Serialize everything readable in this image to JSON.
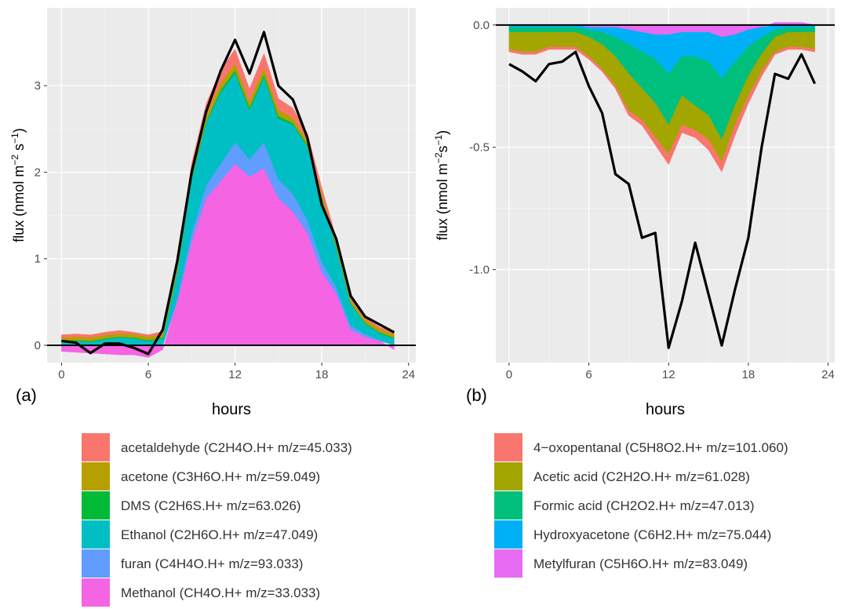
{
  "chart_data": [
    {
      "type": "area",
      "panel_label": "(a)",
      "xlabel": "hours",
      "ylabel": "flux (nmol m",
      "ylabel_exp1": "−2",
      "ylabel_mid": " s",
      "ylabel_exp2": "−1",
      "ylabel_end": ")",
      "xlim": [
        -1,
        24.5
      ],
      "ylim": [
        -0.2,
        3.9
      ],
      "xticks": [
        0,
        6,
        12,
        18,
        24
      ],
      "yticks": [
        0,
        1,
        2,
        3
      ],
      "grid": true,
      "x": [
        0,
        1,
        2,
        3,
        4,
        5,
        6,
        7,
        8,
        9,
        10,
        11,
        12,
        13,
        14,
        15,
        16,
        17,
        18,
        19,
        20,
        21,
        22,
        23
      ],
      "series": [
        {
          "name": "acetaldehyde (C2H4O.H+ m/z=45.033)",
          "color": "#F8766D",
          "values": [
            0.03,
            0.03,
            0.03,
            0.03,
            0.03,
            0.02,
            0.02,
            0.03,
            0.06,
            0.1,
            0.13,
            0.15,
            0.16,
            0.14,
            0.16,
            0.13,
            0.11,
            0.08,
            0.06,
            0.05,
            0.03,
            0.02,
            0.02,
            0.02
          ]
        },
        {
          "name": "acetone (C3H6O.H+ m/z=59.049)",
          "color": "#B79F00",
          "values": [
            0.04,
            0.04,
            0.04,
            0.04,
            0.04,
            0.04,
            0.04,
            0.04,
            0.05,
            0.06,
            0.07,
            0.08,
            0.08,
            0.07,
            0.08,
            0.07,
            0.06,
            0.05,
            0.05,
            0.04,
            0.04,
            0.04,
            0.04,
            0.04
          ]
        },
        {
          "name": "DMS (C2H6S.H+ m/z=63.026)",
          "color": "#00BA38",
          "values": [
            0.01,
            0.01,
            0.01,
            0.01,
            0.01,
            0.01,
            0.01,
            0.01,
            0.01,
            0.02,
            0.02,
            0.03,
            0.03,
            0.03,
            0.03,
            0.03,
            0.02,
            0.02,
            0.02,
            0.01,
            0.01,
            0.01,
            0.01,
            0.01
          ]
        },
        {
          "name": "Ethanol (C2H6O.H+ m/z=47.049)",
          "color": "#00BFC4",
          "values": [
            0.04,
            0.05,
            0.04,
            0.07,
            0.09,
            0.08,
            0.05,
            0.08,
            0.3,
            0.62,
            0.72,
            0.82,
            0.8,
            0.57,
            0.75,
            0.7,
            0.8,
            0.85,
            0.72,
            0.47,
            0.25,
            0.12,
            0.08,
            0.07
          ]
        },
        {
          "name": "furan   (C4H4O.H+ m/z=93.033)",
          "color": "#619CFF",
          "values": [
            0.0,
            0.0,
            0.0,
            0.0,
            0.0,
            0.0,
            0.0,
            0.0,
            0.05,
            0.1,
            0.15,
            0.2,
            0.25,
            0.2,
            0.3,
            0.22,
            0.2,
            0.15,
            0.12,
            0.07,
            0.05,
            0.03,
            0.01,
            0.01
          ]
        },
        {
          "name": "Methanol (CH4O.H+ m/z=33.033)",
          "color": "#F564E3",
          "values": [
            -0.07,
            -0.08,
            -0.09,
            -0.1,
            -0.11,
            -0.11,
            -0.14,
            -0.05,
            0.5,
            1.2,
            1.7,
            1.9,
            2.1,
            1.95,
            2.05,
            1.7,
            1.55,
            1.3,
            0.85,
            0.6,
            0.18,
            0.1,
            0.05,
            -0.05
          ]
        }
      ],
      "total_line": {
        "color": "#000000",
        "values": [
          0.05,
          0.03,
          -0.09,
          0.02,
          0.02,
          -0.03,
          -0.1,
          0.18,
          0.97,
          2.0,
          2.7,
          3.17,
          3.53,
          3.14,
          3.62,
          3.0,
          2.84,
          2.4,
          1.62,
          1.23,
          0.57,
          0.33,
          0.24,
          0.15
        ]
      }
    },
    {
      "type": "area",
      "panel_label": "(b)",
      "xlabel": "hours",
      "ylabel": "flux (nmol m",
      "ylabel_exp1": "−2",
      "ylabel_mid": "s",
      "ylabel_exp2": "−1",
      "ylabel_end": ")",
      "xlim": [
        -1,
        24.5
      ],
      "ylim": [
        -1.38,
        0.07
      ],
      "xticks": [
        0,
        6,
        12,
        18,
        24
      ],
      "yticks": [
        0.0,
        -0.5,
        -1.0
      ],
      "ytick_labels": [
        "0.0",
        "-0.5",
        "-1.0"
      ],
      "grid": true,
      "x": [
        0,
        1,
        2,
        3,
        4,
        5,
        6,
        7,
        8,
        9,
        10,
        11,
        12,
        13,
        14,
        15,
        16,
        17,
        18,
        19,
        20,
        21,
        22,
        23
      ],
      "series": [
        {
          "name": "4−oxopentanal (C5H8O2.H+ m/z=101.060)",
          "color": "#F8766D",
          "values": [
            -0.01,
            -0.01,
            -0.01,
            -0.01,
            -0.01,
            -0.01,
            -0.01,
            -0.01,
            -0.01,
            -0.02,
            -0.02,
            -0.03,
            -0.04,
            -0.03,
            -0.03,
            -0.04,
            -0.04,
            -0.04,
            -0.03,
            -0.02,
            -0.01,
            -0.01,
            -0.01,
            -0.01
          ]
        },
        {
          "name": "Acetic acid (C2H2O.H+ m/z=61.028)",
          "color": "#A3A500",
          "values": [
            -0.07,
            -0.08,
            -0.08,
            -0.06,
            -0.06,
            -0.06,
            -0.08,
            -0.1,
            -0.12,
            -0.15,
            -0.13,
            -0.14,
            -0.12,
            -0.12,
            -0.1,
            -0.1,
            -0.09,
            -0.08,
            -0.08,
            -0.07,
            -0.06,
            -0.06,
            -0.06,
            -0.07
          ]
        },
        {
          "name": "Formic acid (CH2O2.H+ m/z=47.013)",
          "color": "#00BF7D",
          "values": [
            -0.02,
            -0.02,
            -0.02,
            -0.02,
            -0.02,
            -0.02,
            -0.03,
            -0.05,
            -0.08,
            -0.12,
            -0.15,
            -0.18,
            -0.21,
            -0.16,
            -0.2,
            -0.22,
            -0.25,
            -0.18,
            -0.12,
            -0.07,
            -0.03,
            -0.02,
            -0.02,
            -0.02
          ]
        },
        {
          "name": "Hydroxyacetone (C6H2.H+ m/z=75.044)",
          "color": "#00B0F6",
          "values": [
            -0.01,
            -0.01,
            -0.01,
            -0.01,
            -0.01,
            -0.01,
            -0.01,
            -0.02,
            -0.04,
            -0.06,
            -0.08,
            -0.1,
            -0.16,
            -0.1,
            -0.1,
            -0.12,
            -0.17,
            -0.11,
            -0.07,
            -0.04,
            -0.02,
            -0.01,
            -0.01,
            -0.01
          ]
        },
        {
          "name": "Metylfuran (C5H6O.H+ m/z=83.049)",
          "color": "#E76BF3",
          "values": [
            0.0,
            0.0,
            0.0,
            0.0,
            0.0,
            0.0,
            -0.01,
            -0.01,
            -0.01,
            -0.02,
            -0.03,
            -0.04,
            -0.04,
            -0.03,
            -0.03,
            -0.03,
            -0.05,
            -0.04,
            -0.02,
            -0.01,
            0.01,
            0.01,
            0.01,
            0.0
          ]
        }
      ],
      "total_line": {
        "color": "#000000",
        "values": [
          -0.16,
          -0.19,
          -0.23,
          -0.16,
          -0.15,
          -0.11,
          -0.25,
          -0.36,
          -0.61,
          -0.65,
          -0.87,
          -0.85,
          -1.32,
          -1.13,
          -0.89,
          -1.1,
          -1.31,
          -1.08,
          -0.87,
          -0.5,
          -0.2,
          -0.22,
          -0.12,
          -0.24
        ]
      }
    }
  ]
}
